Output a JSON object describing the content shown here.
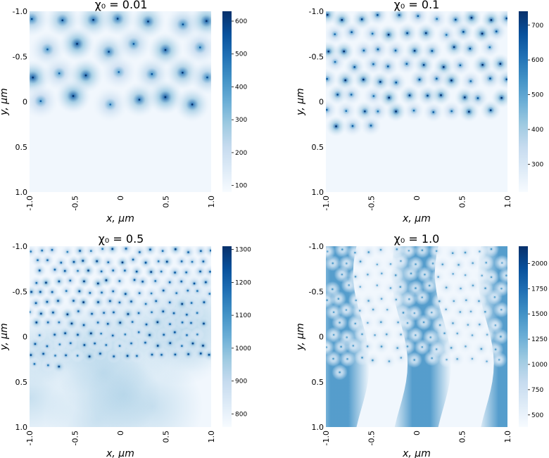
{
  "chart_data": [
    {
      "type": "heatmap",
      "title": "χ₀ = 0.01",
      "xlabel": "x, μm",
      "ylabel": "y, μm",
      "xlim": [
        -1.0,
        1.0
      ],
      "ylim": [
        -1.0,
        1.0
      ],
      "xticks": [
        "-1.0",
        "-0.5",
        "0",
        "0.5",
        "1.0"
      ],
      "yticks": [
        "-1.0",
        "-0.5",
        "0",
        "0.5",
        "1.0"
      ],
      "colorbar": {
        "min": 80,
        "max": 630,
        "ticks": [
          "100",
          "200",
          "300",
          "400",
          "500",
          "600"
        ],
        "tick_values": [
          100,
          200,
          300,
          400,
          500,
          600
        ]
      },
      "pattern": "sparse hexagonal-like lattice of isolated intensity spots on a near-white background",
      "spot_count": 26,
      "spot_strength": 0.75,
      "background_profile": "uniform"
    },
    {
      "type": "heatmap",
      "title": "χ₀ = 0.1",
      "xlabel": "x, μm",
      "ylabel": "y, μm",
      "xlim": [
        -1.0,
        1.0
      ],
      "ylim": [
        -1.0,
        1.0
      ],
      "xticks": [
        "-1.0",
        "-0.5",
        "0",
        "0.5",
        "1.0"
      ],
      "yticks": [
        "-1.0",
        "-0.5",
        "0",
        "0.5",
        "1.0"
      ],
      "colorbar": {
        "min": 220,
        "max": 740,
        "ticks": [
          "300",
          "400",
          "500",
          "600",
          "700"
        ],
        "tick_values": [
          300,
          400,
          500,
          600,
          700
        ]
      },
      "pattern": "denser lattice of intensity spots",
      "spot_count": 75,
      "spot_strength": 0.7,
      "background_profile": "uniform"
    },
    {
      "type": "heatmap",
      "title": "χ₀ = 0.5",
      "xlabel": "x, μm",
      "ylabel": "y, μm",
      "xlim": [
        -1.0,
        1.0
      ],
      "ylim": [
        -1.0,
        1.0
      ],
      "xticks": [
        "-1.0",
        "-0.5",
        "0",
        "0.5",
        "1.0"
      ],
      "yticks": [
        "-1.0",
        "-0.5",
        "0",
        "0.5",
        "1.0"
      ],
      "colorbar": {
        "min": 760,
        "max": 1310,
        "ticks": [
          "800",
          "900",
          "1000",
          "1100",
          "1200",
          "1300"
        ],
        "tick_values": [
          800,
          900,
          1000,
          1100,
          1200,
          1300
        ]
      },
      "pattern": "dense lattice of spots over a weakly modulated background",
      "spot_count": 170,
      "spot_strength": 0.6,
      "background_profile": "weak-blobs"
    },
    {
      "type": "heatmap",
      "title": "χ₀ = 1.0",
      "xlabel": "x, μm",
      "ylabel": "y, μm",
      "xlim": [
        -1.0,
        1.0
      ],
      "ylim": [
        -1.0,
        1.0
      ],
      "xticks": [
        "-1.0",
        "-0.5",
        "0",
        "0.5",
        "1.0"
      ],
      "yticks": [
        "-1.0",
        "-0.5",
        "0",
        "0.5",
        "1.0"
      ],
      "colorbar": {
        "min": 380,
        "max": 2170,
        "ticks": [
          "500",
          "750",
          "1000",
          "1250",
          "1500",
          "1750",
          "2000"
        ],
        "tick_values": [
          500,
          750,
          1000,
          1250,
          1500,
          1750,
          2000
        ]
      },
      "pattern": "vertical wavy high-intensity bands near x≈-0.85, x≈0.05 and x≈1.0 with small spots inside",
      "spot_count": 130,
      "spot_strength": 0.25,
      "background_profile": "wavy-bands",
      "band_centers_x": [
        -0.85,
        0.05,
        1.0
      ]
    }
  ]
}
